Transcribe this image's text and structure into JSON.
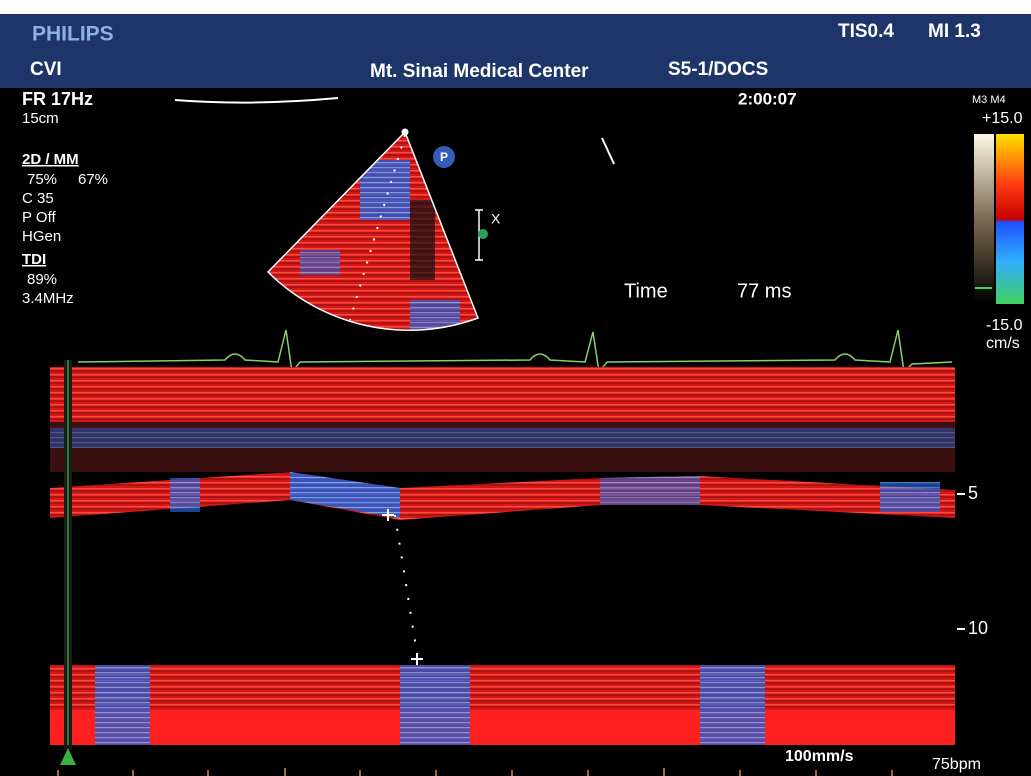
{
  "header": {
    "brand": "PHILIPS",
    "tis": "TIS0.4",
    "mi": "MI 1.3",
    "mode": "CVI",
    "site": "Mt. Sinai Medical Center",
    "probe": "S5-1/DOCS"
  },
  "left_panel": {
    "frame_rate": "FR 17Hz",
    "depth": "15cm",
    "mode_2d": "2D / MM",
    "gain_2d": "75%",
    "gain_mm": "67%",
    "compression": "C 35",
    "persistence": "P Off",
    "harmonic": "HGen",
    "mode_tdi": "TDI",
    "gain_tdi": "89%",
    "frequency": "3.4MHz"
  },
  "clock": "2:00:07",
  "sector_marker": "P",
  "cursor_mark": "X",
  "measurement": {
    "label": "Time",
    "value": "77 ms"
  },
  "color_bar": {
    "modes": "M3 M4",
    "max": "+15.0",
    "min": "-15.0",
    "unit": "cm/s"
  },
  "depth_scale": [
    "5",
    "10"
  ],
  "footer": {
    "sweep": "100mm/s",
    "heart_rate": "75bpm"
  }
}
